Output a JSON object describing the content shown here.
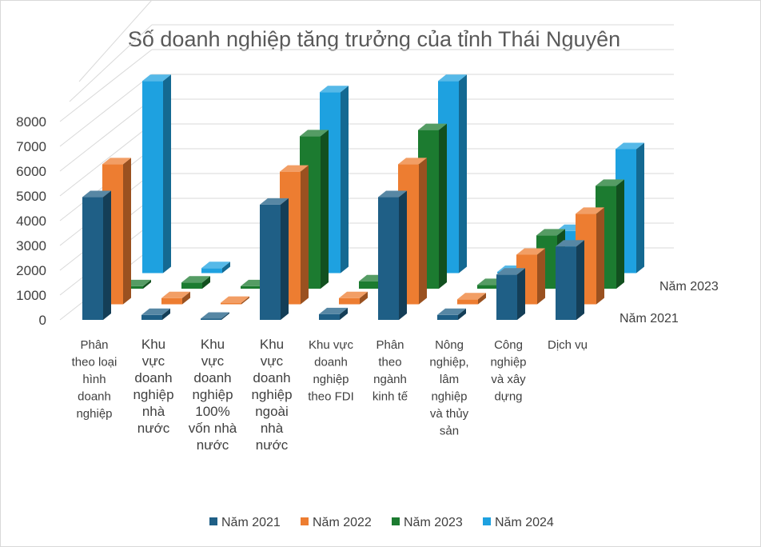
{
  "chart_data": {
    "type": "bar",
    "variant": "3d-column",
    "title": "Số doanh nghiệp tăng trưởng của tỉnh Thái Nguyên",
    "categories": [
      [
        "Phân",
        "theo loại",
        "hình",
        "doanh",
        "nghiệp"
      ],
      [
        "Khu",
        "vực",
        "doanh",
        "nghiệp",
        "nhà",
        "nước"
      ],
      [
        "Khu",
        "vực",
        "doanh",
        "nghiệp",
        "100%",
        "vốn nhà",
        "nước"
      ],
      [
        "Khu",
        "vực",
        "doanh",
        "nghiệp",
        "ngoài",
        "nhà",
        "nước"
      ],
      [
        "Khu vực",
        "doanh",
        "nghiệp",
        "theo FDI"
      ],
      [
        "Phân",
        "theo",
        "ngành",
        "kinh tế"
      ],
      [
        "Nông",
        "nghiệp,",
        "lâm",
        "nghiệp",
        "và thủy",
        "sản"
      ],
      [
        "Công",
        "nghiệp",
        "và xây",
        "dựng"
      ],
      [
        "Dịch vụ"
      ]
    ],
    "series": [
      {
        "name": "Năm 2021",
        "color": "#1f5f86",
        "values": [
          4950,
          200,
          40,
          4650,
          230,
          4950,
          200,
          1830,
          2960
        ]
      },
      {
        "name": "Năm 2022",
        "color": "#ed7d31",
        "values": [
          5650,
          250,
          60,
          5350,
          250,
          5650,
          200,
          2000,
          3650
        ]
      },
      {
        "name": "Năm 2023",
        "color": "#1c7b30",
        "values": [
          100,
          250,
          100,
          6150,
          300,
          6400,
          150,
          2150,
          4150
        ]
      },
      {
        "name": "Năm 2024",
        "color": "#1ea1e0",
        "values": [
          7750,
          200,
          0,
          7300,
          0,
          7750,
          0,
          1700,
          5000
        ]
      }
    ],
    "depth_axis_labels": [
      "Năm 2021",
      "Năm 2023"
    ],
    "yticks": [
      "0",
      "1000",
      "2000",
      "3000",
      "4000",
      "5000",
      "6000",
      "7000",
      "8000"
    ],
    "ylim": [
      0,
      8000
    ],
    "grid": true,
    "legend": {
      "position": "bottom",
      "labels": [
        "Năm 2021",
        "Năm 2022",
        "Năm 2023",
        "Năm 2024"
      ]
    }
  }
}
